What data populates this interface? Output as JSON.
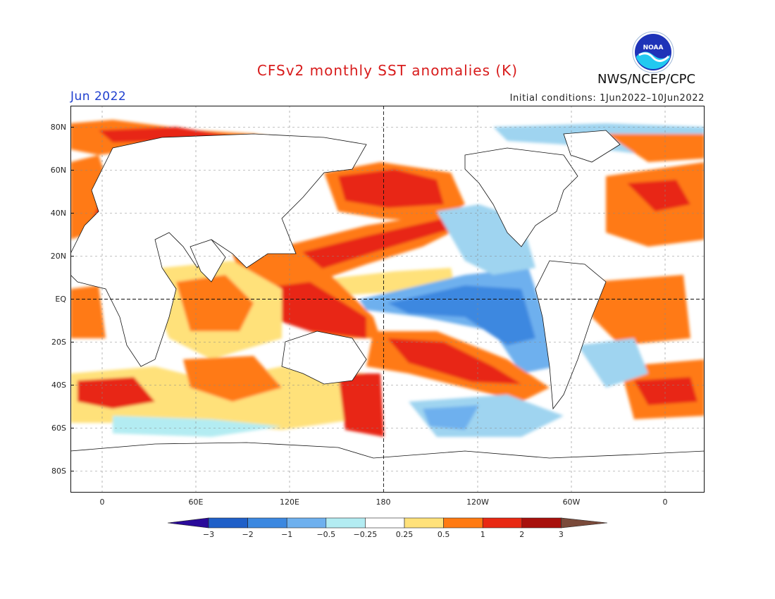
{
  "title": "CFSv2 monthly SST anomalies (K)",
  "organization": "NWS/NCEP/CPC",
  "logo_text": "NOAA",
  "period": "Jun 2022",
  "initial_conditions": "Initial conditions: 1Jun2022–10Jun2022",
  "y_axis_labels": [
    "80N",
    "60N",
    "40N",
    "20N",
    "EQ",
    "20S",
    "40S",
    "60S",
    "80S"
  ],
  "x_axis_labels": [
    "0",
    "60E",
    "120E",
    "180",
    "120W",
    "60W",
    "0"
  ],
  "colorbar": {
    "labels": [
      "−3",
      "−2",
      "−1",
      "−0.5",
      "−0.25",
      "0.25",
      "0.5",
      "1",
      "2",
      "3"
    ],
    "colors": [
      "#2a0a9a",
      "#1f5fc8",
      "#3c88e0",
      "#6eb0ee",
      "#b3ecf2",
      "#ffffff",
      "#ffe17a",
      "#ff7a12",
      "#e82812",
      "#a8100c",
      "#7a4a3a"
    ]
  }
}
